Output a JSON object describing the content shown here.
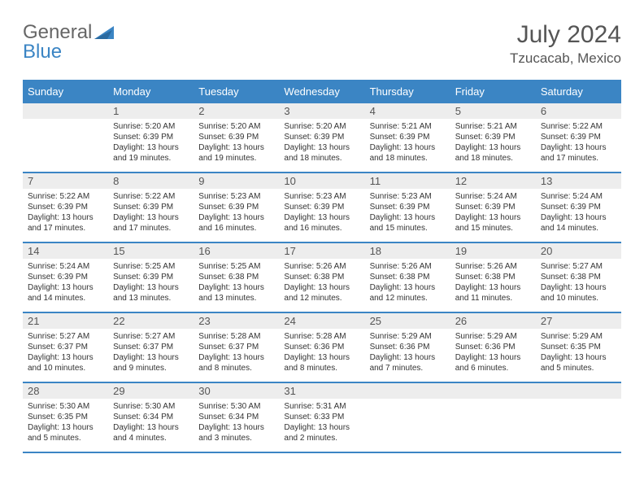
{
  "logo": {
    "part1": "General",
    "part2": "Blue"
  },
  "title": "July 2024",
  "location": "Tzucacab, Mexico",
  "colors": {
    "header_bg": "#3b85c4",
    "header_text": "#ffffff",
    "daynum_bg": "#ededed",
    "border": "#3b85c4",
    "text": "#333333",
    "title_text": "#555555"
  },
  "weekdays": [
    "Sunday",
    "Monday",
    "Tuesday",
    "Wednesday",
    "Thursday",
    "Friday",
    "Saturday"
  ],
  "weeks": [
    [
      null,
      {
        "n": "1",
        "sr": "5:20 AM",
        "ss": "6:39 PM",
        "dl": "13 hours and 19 minutes."
      },
      {
        "n": "2",
        "sr": "5:20 AM",
        "ss": "6:39 PM",
        "dl": "13 hours and 19 minutes."
      },
      {
        "n": "3",
        "sr": "5:20 AM",
        "ss": "6:39 PM",
        "dl": "13 hours and 18 minutes."
      },
      {
        "n": "4",
        "sr": "5:21 AM",
        "ss": "6:39 PM",
        "dl": "13 hours and 18 minutes."
      },
      {
        "n": "5",
        "sr": "5:21 AM",
        "ss": "6:39 PM",
        "dl": "13 hours and 18 minutes."
      },
      {
        "n": "6",
        "sr": "5:22 AM",
        "ss": "6:39 PM",
        "dl": "13 hours and 17 minutes."
      }
    ],
    [
      {
        "n": "7",
        "sr": "5:22 AM",
        "ss": "6:39 PM",
        "dl": "13 hours and 17 minutes."
      },
      {
        "n": "8",
        "sr": "5:22 AM",
        "ss": "6:39 PM",
        "dl": "13 hours and 17 minutes."
      },
      {
        "n": "9",
        "sr": "5:23 AM",
        "ss": "6:39 PM",
        "dl": "13 hours and 16 minutes."
      },
      {
        "n": "10",
        "sr": "5:23 AM",
        "ss": "6:39 PM",
        "dl": "13 hours and 16 minutes."
      },
      {
        "n": "11",
        "sr": "5:23 AM",
        "ss": "6:39 PM",
        "dl": "13 hours and 15 minutes."
      },
      {
        "n": "12",
        "sr": "5:24 AM",
        "ss": "6:39 PM",
        "dl": "13 hours and 15 minutes."
      },
      {
        "n": "13",
        "sr": "5:24 AM",
        "ss": "6:39 PM",
        "dl": "13 hours and 14 minutes."
      }
    ],
    [
      {
        "n": "14",
        "sr": "5:24 AM",
        "ss": "6:39 PM",
        "dl": "13 hours and 14 minutes."
      },
      {
        "n": "15",
        "sr": "5:25 AM",
        "ss": "6:39 PM",
        "dl": "13 hours and 13 minutes."
      },
      {
        "n": "16",
        "sr": "5:25 AM",
        "ss": "6:38 PM",
        "dl": "13 hours and 13 minutes."
      },
      {
        "n": "17",
        "sr": "5:26 AM",
        "ss": "6:38 PM",
        "dl": "13 hours and 12 minutes."
      },
      {
        "n": "18",
        "sr": "5:26 AM",
        "ss": "6:38 PM",
        "dl": "13 hours and 12 minutes."
      },
      {
        "n": "19",
        "sr": "5:26 AM",
        "ss": "6:38 PM",
        "dl": "13 hours and 11 minutes."
      },
      {
        "n": "20",
        "sr": "5:27 AM",
        "ss": "6:38 PM",
        "dl": "13 hours and 10 minutes."
      }
    ],
    [
      {
        "n": "21",
        "sr": "5:27 AM",
        "ss": "6:37 PM",
        "dl": "13 hours and 10 minutes."
      },
      {
        "n": "22",
        "sr": "5:27 AM",
        "ss": "6:37 PM",
        "dl": "13 hours and 9 minutes."
      },
      {
        "n": "23",
        "sr": "5:28 AM",
        "ss": "6:37 PM",
        "dl": "13 hours and 8 minutes."
      },
      {
        "n": "24",
        "sr": "5:28 AM",
        "ss": "6:36 PM",
        "dl": "13 hours and 8 minutes."
      },
      {
        "n": "25",
        "sr": "5:29 AM",
        "ss": "6:36 PM",
        "dl": "13 hours and 7 minutes."
      },
      {
        "n": "26",
        "sr": "5:29 AM",
        "ss": "6:36 PM",
        "dl": "13 hours and 6 minutes."
      },
      {
        "n": "27",
        "sr": "5:29 AM",
        "ss": "6:35 PM",
        "dl": "13 hours and 5 minutes."
      }
    ],
    [
      {
        "n": "28",
        "sr": "5:30 AM",
        "ss": "6:35 PM",
        "dl": "13 hours and 5 minutes."
      },
      {
        "n": "29",
        "sr": "5:30 AM",
        "ss": "6:34 PM",
        "dl": "13 hours and 4 minutes."
      },
      {
        "n": "30",
        "sr": "5:30 AM",
        "ss": "6:34 PM",
        "dl": "13 hours and 3 minutes."
      },
      {
        "n": "31",
        "sr": "5:31 AM",
        "ss": "6:33 PM",
        "dl": "13 hours and 2 minutes."
      },
      null,
      null,
      null
    ]
  ],
  "labels": {
    "sunrise": "Sunrise: ",
    "sunset": "Sunset: ",
    "daylight": "Daylight: "
  }
}
